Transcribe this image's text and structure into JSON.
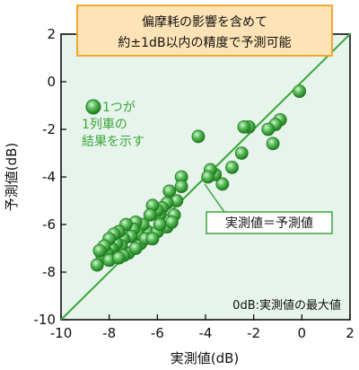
{
  "chart_data": {
    "type": "scatter",
    "title_box": [
      "偏摩耗の影響を含めて",
      "約±1dB以内の精度で予測可能"
    ],
    "xlabel": "実測値(dB)",
    "ylabel": "予測値(dB)",
    "xlim": [
      -10,
      2
    ],
    "ylim": [
      -10,
      2
    ],
    "xticks": [
      -10,
      -8,
      -6,
      -4,
      -2,
      0,
      2
    ],
    "yticks": [
      -10,
      -8,
      -6,
      -4,
      -2,
      0,
      2
    ],
    "grid": false,
    "reference_line": {
      "slope": 1,
      "intercept": 0,
      "color": "#3aa53a"
    },
    "legend_text": [
      "1つが",
      "1列車の",
      "結果を示す"
    ],
    "line_label": "実測値＝予測値",
    "footnote": "0dB:実測値の最大値",
    "colors": {
      "marker_fill": "#4caf50",
      "marker_stroke": "#1e7a1e",
      "plot_bg": "#e7f4ec",
      "title_box_bg": "#fde3b5",
      "title_box_border": "#f0a830",
      "accent_green": "#3aa53a"
    },
    "points": [
      [
        -0.1,
        -0.4
      ],
      [
        -0.9,
        -1.6
      ],
      [
        -1.1,
        -1.8
      ],
      [
        -1.2,
        -2.6
      ],
      [
        -1.4,
        -2.0
      ],
      [
        -2.2,
        -1.9
      ],
      [
        -2.4,
        -1.9
      ],
      [
        -2.5,
        -3.0
      ],
      [
        -2.9,
        -3.6
      ],
      [
        -3.3,
        -4.3
      ],
      [
        -3.6,
        -3.9
      ],
      [
        -3.8,
        -3.7
      ],
      [
        -3.9,
        -4.0
      ],
      [
        -4.3,
        -2.3
      ],
      [
        -5.0,
        -4.0
      ],
      [
        -5.0,
        -4.4
      ],
      [
        -5.2,
        -5.0
      ],
      [
        -5.3,
        -5.6
      ],
      [
        -5.5,
        -4.6
      ],
      [
        -5.6,
        -5.1
      ],
      [
        -5.8,
        -5.3
      ],
      [
        -5.9,
        -5.6
      ],
      [
        -6.0,
        -5.4
      ],
      [
        -6.2,
        -5.2
      ],
      [
        -6.3,
        -5.6
      ],
      [
        -6.4,
        -6.3
      ],
      [
        -6.6,
        -6.0
      ],
      [
        -6.7,
        -6.8
      ],
      [
        -6.8,
        -6.4
      ],
      [
        -6.9,
        -5.9
      ],
      [
        -7.0,
        -6.2
      ],
      [
        -7.1,
        -6.5
      ],
      [
        -7.2,
        -7.2
      ],
      [
        -7.3,
        -6.0
      ],
      [
        -7.4,
        -6.6
      ],
      [
        -7.5,
        -6.9
      ],
      [
        -7.6,
        -6.3
      ],
      [
        -7.7,
        -6.8
      ],
      [
        -7.8,
        -6.4
      ],
      [
        -7.9,
        -7.0
      ],
      [
        -8.0,
        -6.6
      ],
      [
        -8.1,
        -7.2
      ],
      [
        -8.2,
        -6.9
      ],
      [
        -8.3,
        -7.3
      ],
      [
        -8.4,
        -7.1
      ],
      [
        -8.5,
        -7.7
      ],
      [
        -8.0,
        -7.5
      ],
      [
        -7.4,
        -7.3
      ],
      [
        -6.9,
        -7.0
      ],
      [
        -6.5,
        -6.6
      ],
      [
        -6.0,
        -6.3
      ],
      [
        -5.6,
        -6.1
      ],
      [
        -5.4,
        -5.9
      ],
      [
        -5.9,
        -6.0
      ],
      [
        -6.2,
        -6.6
      ],
      [
        -7.6,
        -7.4
      ]
    ]
  }
}
